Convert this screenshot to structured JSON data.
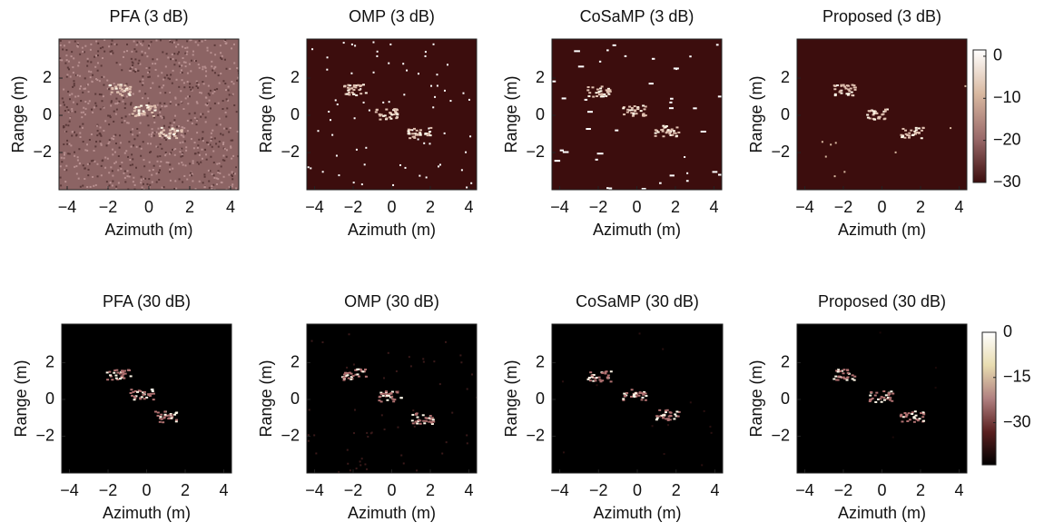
{
  "chart_data": [
    {
      "type": "heatmap",
      "title": "PFA (3 dB)",
      "xlabel": "Azimuth (m)",
      "ylabel": "Range (m)",
      "xlim": [
        -4.4,
        4.4
      ],
      "ylim": [
        -4,
        4.1
      ],
      "xticks": [
        {
          "value": -4,
          "label": "−4"
        },
        {
          "value": -2,
          "label": "−2"
        },
        0,
        2,
        4
      ],
      "yticks": [
        {
          "value": -2,
          "label": "−2"
        },
        0,
        2
      ],
      "background": "#8c6464"
    },
    {
      "type": "heatmap",
      "title": "OMP (3 dB)",
      "xlabel": "Azimuth (m)",
      "ylabel": "Range (m)",
      "xlim": [
        -4.4,
        4.4
      ],
      "ylim": [
        -4,
        4.1
      ],
      "xticks": [
        {
          "value": -4,
          "label": "−4"
        },
        {
          "value": -2,
          "label": "−2"
        },
        0,
        2,
        4
      ],
      "yticks": [
        {
          "value": -2,
          "label": "−2"
        },
        0,
        2
      ],
      "background": "#3c0d0d"
    },
    {
      "type": "heatmap",
      "title": "CoSaMP (3 dB)",
      "xlabel": "Azimuth (m)",
      "ylabel": "Range (m)",
      "xlim": [
        -4.4,
        4.4
      ],
      "ylim": [
        -4,
        4.1
      ],
      "xticks": [
        {
          "value": -4,
          "label": "−4"
        },
        {
          "value": -2,
          "label": "−2"
        },
        0,
        2,
        4
      ],
      "yticks": [
        {
          "value": -2,
          "label": "−2"
        },
        0,
        2
      ],
      "background": "#3c0d0d"
    },
    {
      "type": "heatmap",
      "title": "Proposed (3 dB)",
      "xlabel": "Azimuth (m)",
      "ylabel": "Range (m)",
      "xlim": [
        -4.4,
        4.4
      ],
      "ylim": [
        -4,
        4.1
      ],
      "xticks": [
        {
          "value": -4,
          "label": "−4"
        },
        {
          "value": -2,
          "label": "−2"
        },
        0,
        2,
        4
      ],
      "yticks": [
        {
          "value": -2,
          "label": "−2"
        },
        0,
        2
      ],
      "background": "#3c0d0d",
      "colorbar": {
        "clim": [
          -30,
          1.5
        ],
        "ticks": [
          0,
          {
            "value": -10,
            "label": "−10"
          },
          {
            "value": -20,
            "label": "−20"
          },
          {
            "value": -30,
            "label": "−30"
          }
        ],
        "colors": [
          "#3c0d0d",
          "#9a6a6a",
          "#d8b8a0",
          "#ffffff"
        ]
      }
    },
    {
      "type": "heatmap",
      "title": "PFA (30 dB)",
      "xlabel": "Azimuth (m)",
      "ylabel": "Range (m)",
      "xlim": [
        -4.4,
        4.4
      ],
      "ylim": [
        -4,
        4.1
      ],
      "xticks": [
        {
          "value": -4,
          "label": "−4"
        },
        {
          "value": -2,
          "label": "−2"
        },
        0,
        2,
        4
      ],
      "yticks": [
        {
          "value": -2,
          "label": "−2"
        },
        0,
        2
      ],
      "background": "#000000"
    },
    {
      "type": "heatmap",
      "title": "OMP (30 dB)",
      "xlabel": "Azimuth (m)",
      "ylabel": "Range (m)",
      "xlim": [
        -4.4,
        4.4
      ],
      "ylim": [
        -4,
        4.1
      ],
      "xticks": [
        {
          "value": -4,
          "label": "−4"
        },
        {
          "value": -2,
          "label": "−2"
        },
        0,
        2,
        4
      ],
      "yticks": [
        {
          "value": -2,
          "label": "−2"
        },
        0,
        2
      ],
      "background": "#000000"
    },
    {
      "type": "heatmap",
      "title": "CoSaMP (30 dB)",
      "xlabel": "Azimuth (m)",
      "ylabel": "Range (m)",
      "xlim": [
        -4.4,
        4.4
      ],
      "ylim": [
        -4,
        4.1
      ],
      "xticks": [
        {
          "value": -4,
          "label": "−4"
        },
        {
          "value": -2,
          "label": "−2"
        },
        0,
        2,
        4
      ],
      "yticks": [
        {
          "value": -2,
          "label": "−2"
        },
        0,
        2
      ],
      "background": "#000000"
    },
    {
      "type": "heatmap",
      "title": "Proposed (30 dB)",
      "xlabel": "Azimuth (m)",
      "ylabel": "Range (m)",
      "xlim": [
        -4.4,
        4.4
      ],
      "ylim": [
        -4,
        4.1
      ],
      "xticks": [
        {
          "value": -4,
          "label": "−4"
        },
        {
          "value": -2,
          "label": "−2"
        },
        0,
        2,
        4
      ],
      "yticks": [
        {
          "value": -2,
          "label": "−2"
        },
        0,
        2
      ],
      "background": "#000000",
      "colorbar": {
        "clim": [
          -44,
          0
        ],
        "ticks": [
          0,
          {
            "value": -15,
            "label": "−15"
          },
          {
            "value": -30,
            "label": "−30"
          }
        ],
        "colors": [
          "#000000",
          "#5a2020",
          "#b08080",
          "#e8dcb0",
          "#ffffff"
        ]
      }
    }
  ]
}
